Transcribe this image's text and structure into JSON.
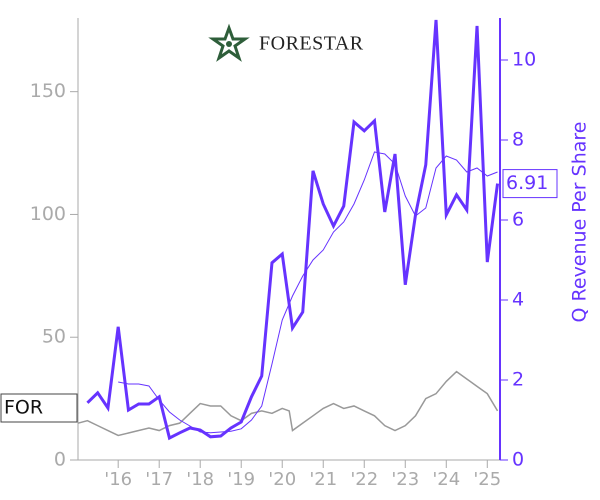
{
  "logo_text": "FORESTAR",
  "chart_data": {
    "type": "line",
    "y2label": "Q Revenue Per Share",
    "xlim": [
      2015.02,
      2025.31
    ],
    "xticks": [
      {
        "value": 2016,
        "label": "'16"
      },
      {
        "value": 2017,
        "label": "'17"
      },
      {
        "value": 2018,
        "label": "'18"
      },
      {
        "value": 2019,
        "label": "'19"
      },
      {
        "value": 2020,
        "label": "'20"
      },
      {
        "value": 2021,
        "label": "'21"
      },
      {
        "value": 2022,
        "label": "'22"
      },
      {
        "value": 2023,
        "label": "'23"
      },
      {
        "value": 2024,
        "label": "'24"
      },
      {
        "value": 2025,
        "label": "'25"
      }
    ],
    "ylim": [
      0,
      180
    ],
    "yticks": [
      0,
      50,
      100,
      150
    ],
    "y2lim": [
      0,
      11.05
    ],
    "y2ticks": [
      0,
      2,
      4,
      6,
      8,
      10
    ],
    "series": [
      {
        "name": "FOR",
        "color": "#999999",
        "x": [
          2015.02,
          2015.25,
          2015.5,
          2015.75,
          2016,
          2016.25,
          2016.5,
          2016.75,
          2017,
          2017.25,
          2017.5,
          2017.75,
          2018,
          2018.25,
          2018.5,
          2018.75,
          2019,
          2019.25,
          2019.5,
          2019.75,
          2020,
          2020.17,
          2020.25,
          2020.5,
          2020.75,
          2021,
          2021.25,
          2021.5,
          2021.75,
          2022,
          2022.25,
          2022.5,
          2022.75,
          2023,
          2023.25,
          2023.5,
          2023.75,
          2024,
          2024.25,
          2024.5,
          2024.75,
          2025,
          2025.25
        ],
        "values": [
          15,
          16,
          14,
          12,
          10,
          11,
          12,
          13,
          12,
          14,
          15,
          19,
          23,
          22,
          22,
          18,
          16,
          19,
          20,
          19,
          21,
          20,
          12,
          15,
          18,
          21,
          23,
          21,
          22,
          20,
          18,
          14,
          12,
          14,
          18,
          25,
          27,
          32,
          36,
          33,
          30,
          27,
          20
        ]
      },
      {
        "color": "#6633ff",
        "axis": "y2",
        "x": [
          2015.25,
          2015.5,
          2015.75,
          2016,
          2016.25,
          2016.5,
          2016.75,
          2017,
          2017.25,
          2017.5,
          2017.75,
          2018,
          2018.25,
          2018.5,
          2018.75,
          2019,
          2019.25,
          2019.5,
          2019.75,
          2020,
          2020.25,
          2020.5,
          2020.75,
          2021,
          2021.25,
          2021.5,
          2021.75,
          2022,
          2022.25,
          2022.5,
          2022.75,
          2023,
          2023.25,
          2023.5,
          2023.75,
          2024,
          2024.25,
          2024.5,
          2024.75,
          2025,
          2025.25
        ],
        "values": [
          1.43,
          1.68,
          1.3,
          3.33,
          1.25,
          1.4,
          1.4,
          1.58,
          0.55,
          0.68,
          0.8,
          0.75,
          0.58,
          0.6,
          0.8,
          0.95,
          1.58,
          2.1,
          4.93,
          5.15,
          3.3,
          3.7,
          7.23,
          6.4,
          5.85,
          6.35,
          8.45,
          8.23,
          8.48,
          6.2,
          7.65,
          4.38,
          6.13,
          7.38,
          11,
          6.13,
          6.63,
          6.25,
          10.85,
          4.95,
          6.91
        ]
      },
      {
        "color": "#6633ff",
        "axis": "y2",
        "thin": true,
        "x": [
          2016,
          2016.25,
          2016.5,
          2016.75,
          2017,
          2017.25,
          2017.5,
          2017.75,
          2018,
          2018.25,
          2018.5,
          2018.75,
          2019,
          2019.25,
          2019.5,
          2019.75,
          2020,
          2020.25,
          2020.5,
          2020.75,
          2021,
          2021.25,
          2021.5,
          2021.75,
          2022,
          2022.25,
          2022.5,
          2022.75,
          2023,
          2023.25,
          2023.5,
          2023.75,
          2024,
          2024.25,
          2024.5,
          2024.75,
          2025,
          2025.25
        ],
        "values": [
          1.95,
          1.9,
          1.9,
          1.85,
          1.5,
          1.2,
          1.0,
          0.85,
          0.7,
          0.68,
          0.7,
          0.72,
          0.78,
          1.0,
          1.35,
          2.4,
          3.5,
          4.1,
          4.6,
          5.0,
          5.25,
          5.7,
          5.95,
          6.4,
          7.0,
          7.7,
          7.65,
          7.4,
          6.6,
          6.1,
          6.3,
          7.3,
          7.6,
          7.5,
          7.2,
          7.3,
          7.1,
          7.2
        ]
      }
    ]
  }
}
